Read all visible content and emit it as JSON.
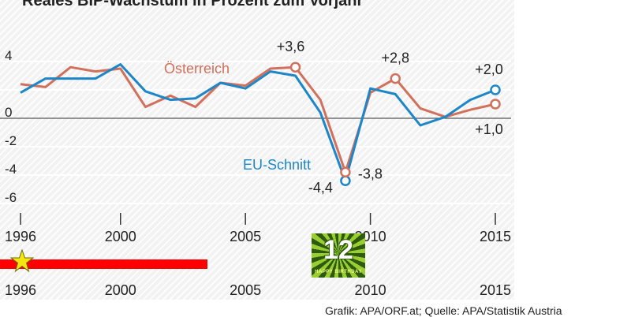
{
  "header": {
    "title": "Reales BIP-Wachstum in Prozent zum Vorjahr"
  },
  "footer": {
    "credit": "Grafik: APA/ORF.at; Quelle: APA/Statistik Austria"
  },
  "badge": {
    "number": "12",
    "text": "HAPPY BIRTHDAY"
  },
  "timeline": {
    "progress_years": [
      1996,
      2004
    ]
  },
  "colors": {
    "austria": "#d1705b",
    "eu": "#1d86c8",
    "timeline_bar": "#ff0000",
    "star": "#f5e612"
  },
  "chart_data": {
    "type": "line",
    "title": "Reales BIP-Wachstum in Prozent zum Vorjahr",
    "x": [
      1996,
      1997,
      1998,
      1999,
      2000,
      2001,
      2002,
      2003,
      2004,
      2005,
      2006,
      2007,
      2008,
      2009,
      2010,
      2011,
      2012,
      2013,
      2014,
      2015
    ],
    "xticks": [
      1996,
      2000,
      2005,
      2010,
      2015
    ],
    "xtick_labels": [
      "1996",
      "2000",
      "2005",
      "2010",
      "2015"
    ],
    "yticks": [
      4,
      2,
      0,
      -2,
      -4,
      -6
    ],
    "ytick_labels": [
      "4",
      "",
      "0",
      "-2",
      "-4",
      "-6"
    ],
    "ylim": [
      -6.5,
      4.7
    ],
    "series": [
      {
        "name": "Österreich",
        "values": [
          2.4,
          2.2,
          3.6,
          3.3,
          3.5,
          0.8,
          1.6,
          0.8,
          2.5,
          2.3,
          3.5,
          3.6,
          1.3,
          -3.8,
          1.8,
          2.8,
          0.7,
          0.1,
          0.6,
          1.0
        ]
      },
      {
        "name": "EU-Schnitt",
        "values": [
          1.8,
          2.8,
          2.8,
          2.8,
          3.8,
          1.9,
          1.3,
          1.4,
          2.5,
          2.1,
          3.3,
          3.0,
          0.4,
          -4.4,
          2.1,
          1.7,
          -0.5,
          0.1,
          1.3,
          2.0
        ]
      }
    ],
    "annotations": [
      {
        "x": 2007,
        "series": "Österreich",
        "text": "+3,6"
      },
      {
        "x": 2009,
        "series": "EU-Schnitt",
        "text": "-4,4"
      },
      {
        "x": 2009,
        "series": "Österreich",
        "text": "-3,8"
      },
      {
        "x": 2011,
        "series": "Österreich",
        "text": "+2,8"
      },
      {
        "x": 2015,
        "series": "EU-Schnitt",
        "text": "+2,0"
      },
      {
        "x": 2015,
        "series": "Österreich",
        "text": "+1,0"
      }
    ]
  }
}
